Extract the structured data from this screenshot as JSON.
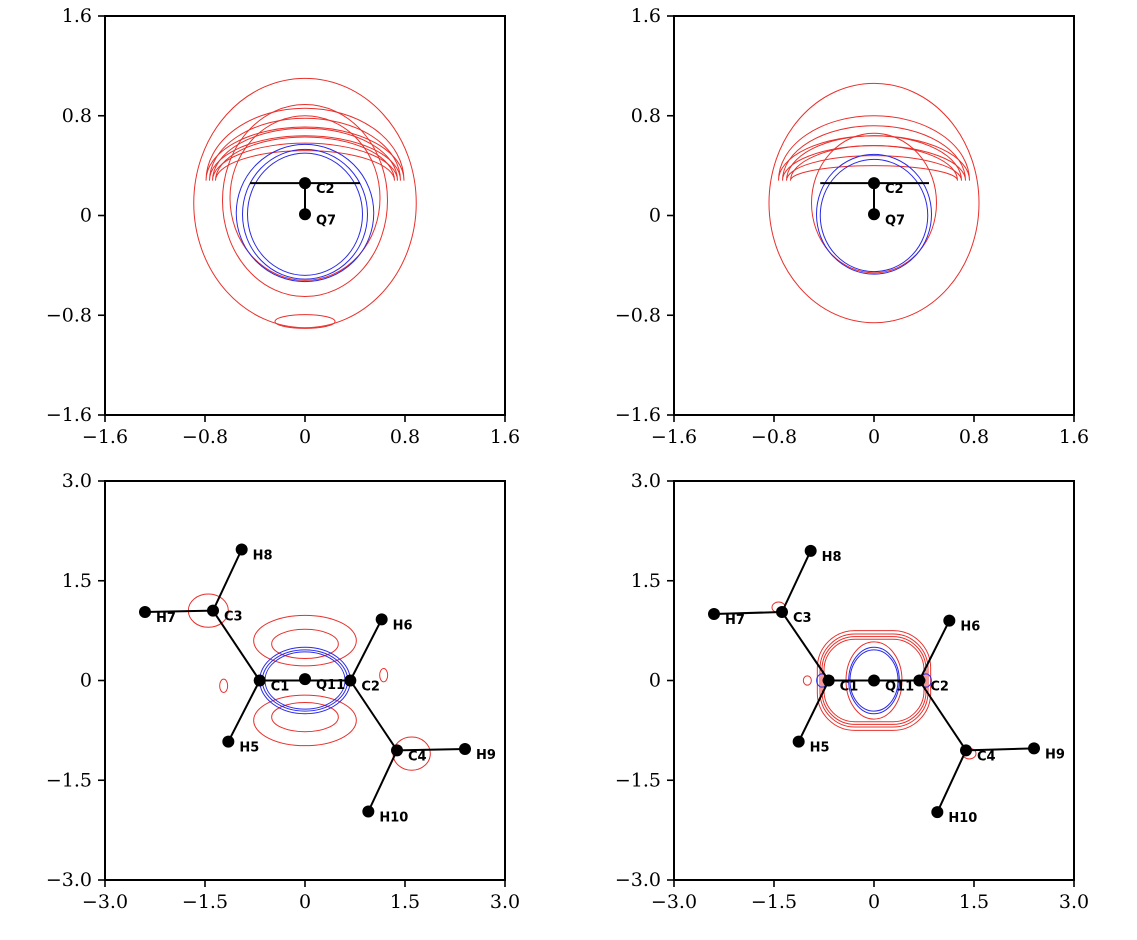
{
  "chart_data": [
    {
      "type": "contour",
      "panel": "top-left",
      "xlim": [
        -1.6,
        1.6
      ],
      "ylim": [
        -1.6,
        1.6
      ],
      "xticks": [
        "−1.6",
        "−0.8",
        "0",
        "0.8",
        "1.6"
      ],
      "yticks": [
        "1.6",
        "0.8",
        "0",
        "−0.8",
        "−1.6"
      ],
      "xtick_values": [
        -1.6,
        -0.8,
        0,
        0.8,
        1.6
      ],
      "ytick_values": [
        1.6,
        0.8,
        0,
        -0.8,
        -1.6
      ],
      "colors": {
        "positive": "#e8302c",
        "negative": "#2a2ae6"
      },
      "atoms": [
        {
          "label": "C2",
          "x": 0,
          "y": 0.26
        },
        {
          "label": "Q7",
          "x": 0,
          "y": 0.01
        }
      ],
      "bonds": [
        [
          [
            -0.44,
            0.26
          ],
          [
            0.44,
            0.26
          ]
        ],
        [
          [
            0,
            0.26
          ],
          [
            0,
            0.01
          ]
        ]
      ],
      "red_ellipses": [
        [
          0,
          0.1,
          0.89,
          1.0
        ],
        [
          0,
          0.12,
          0.66,
          0.77
        ],
        [
          0,
          0.14,
          0.6,
          0.66
        ]
      ],
      "red_arcs": [
        [
          0.24,
          0.35
        ],
        [
          0.3,
          0.42
        ],
        [
          0.36,
          0.5
        ],
        [
          0.43,
          0.58
        ]
      ],
      "red_small": [
        [
          0,
          -0.85,
          0.24,
          0.055
        ]
      ],
      "blue_rings": [
        [
          0,
          0.02,
          0.55,
          0.55
        ],
        [
          0,
          0.01,
          0.5,
          0.52
        ],
        [
          0,
          0.01,
          0.46,
          0.49
        ]
      ]
    },
    {
      "type": "contour",
      "panel": "top-right",
      "xlim": [
        -1.6,
        1.6
      ],
      "ylim": [
        -1.6,
        1.6
      ],
      "xticks": [
        "−1.6",
        "−0.8",
        "0",
        "0.8",
        "1.6"
      ],
      "yticks": [
        "1.6",
        "0.8",
        "0",
        "−0.8",
        "−1.6"
      ],
      "xtick_values": [
        -1.6,
        -0.8,
        0,
        0.8,
        1.6
      ],
      "ytick_values": [
        1.6,
        0.8,
        0,
        -0.8,
        -1.6
      ],
      "colors": {
        "positive": "#e8302c",
        "negative": "#2a2ae6"
      },
      "atoms": [
        {
          "label": "C2",
          "x": 0,
          "y": 0.26
        },
        {
          "label": "Q7",
          "x": 0,
          "y": 0.01
        }
      ],
      "bonds": [
        [
          [
            -0.43,
            0.26
          ],
          [
            0.44,
            0.26
          ]
        ],
        [
          [
            0,
            0.26
          ],
          [
            0,
            0.01
          ]
        ]
      ],
      "red_ellipses": [
        [
          0,
          0.1,
          0.84,
          0.96
        ],
        [
          0,
          0.1,
          0.5,
          0.56
        ]
      ],
      "red_arcs": [
        [
          0.12,
          0.28
        ],
        [
          0.2,
          0.36
        ],
        [
          0.28,
          0.44
        ],
        [
          0.36,
          0.52
        ]
      ],
      "red_small": [],
      "blue_rings": [
        [
          0,
          0.01,
          0.46,
          0.48
        ],
        [
          0,
          0.0,
          0.43,
          0.45
        ]
      ]
    },
    {
      "type": "contour",
      "panel": "bottom-left",
      "xlim": [
        -3.0,
        3.0
      ],
      "ylim": [
        -3.0,
        3.0
      ],
      "xticks": [
        "−3.0",
        "−1.5",
        "0",
        "1.5",
        "3.0"
      ],
      "yticks": [
        "3.0",
        "1.5",
        "0",
        "−1.5",
        "−3.0"
      ],
      "xtick_values": [
        -3.0,
        -1.5,
        0,
        1.5,
        3.0
      ],
      "ytick_values": [
        3.0,
        1.5,
        0,
        -1.5,
        -3.0
      ],
      "colors": {
        "positive": "#e8302c",
        "negative": "#2a2ae6"
      },
      "atoms": [
        {
          "label": "H8",
          "x": -0.95,
          "y": 1.97
        },
        {
          "label": "H7",
          "x": -2.4,
          "y": 1.03
        },
        {
          "label": "C3",
          "x": -1.38,
          "y": 1.05
        },
        {
          "label": "H6",
          "x": 1.15,
          "y": 0.92
        },
        {
          "label": "C1",
          "x": -0.68,
          "y": 0.0
        },
        {
          "label": "Q11",
          "x": 0.0,
          "y": 0.02
        },
        {
          "label": "C2",
          "x": 0.68,
          "y": 0.0
        },
        {
          "label": "H5",
          "x": -1.15,
          "y": -0.92
        },
        {
          "label": "C4",
          "x": 1.38,
          "y": -1.05
        },
        {
          "label": "H9",
          "x": 2.4,
          "y": -1.03
        },
        {
          "label": "H10",
          "x": 0.95,
          "y": -1.97
        }
      ],
      "bonds": [
        [
          0,
          2
        ],
        [
          1,
          2
        ],
        [
          2,
          4
        ],
        [
          4,
          7
        ],
        [
          4,
          6
        ],
        [
          6,
          3
        ],
        [
          6,
          8
        ],
        [
          8,
          9
        ],
        [
          8,
          10
        ]
      ],
      "blue_ellipses": [
        [
          0,
          0,
          0.68,
          0.5
        ],
        [
          0,
          0,
          0.64,
          0.46
        ],
        [
          0,
          0,
          0.6,
          0.43
        ]
      ],
      "red_lobes": [
        [
          0,
          0.6,
          0.77,
          0.38
        ],
        [
          0,
          0.55,
          0.5,
          0.22
        ],
        [
          0,
          -0.6,
          0.77,
          0.38
        ],
        [
          0,
          -0.55,
          0.5,
          0.22
        ]
      ],
      "red_small": [
        [
          -1.45,
          1.05,
          0.3,
          0.25
        ],
        [
          1.6,
          -1.1,
          0.28,
          0.25
        ],
        [
          -1.22,
          -0.08,
          0.06,
          0.1
        ],
        [
          1.18,
          0.08,
          0.06,
          0.1
        ]
      ]
    },
    {
      "type": "contour",
      "panel": "bottom-right",
      "xlim": [
        -3.0,
        3.0
      ],
      "ylim": [
        -3.0,
        3.0
      ],
      "xticks": [
        "−3.0",
        "−1.5",
        "0",
        "1.5",
        "3.0"
      ],
      "yticks": [
        "3.0",
        "1.5",
        "0",
        "−1.5",
        "−3.0"
      ],
      "xtick_values": [
        -3.0,
        -1.5,
        0,
        1.5,
        3.0
      ],
      "ytick_values": [
        3.0,
        1.5,
        0,
        -1.5,
        -3.0
      ],
      "colors": {
        "positive": "#e8302c",
        "negative": "#2a2ae6"
      },
      "atoms": [
        {
          "label": "H8",
          "x": -0.95,
          "y": 1.95
        },
        {
          "label": "H7",
          "x": -2.4,
          "y": 1.0
        },
        {
          "label": "C3",
          "x": -1.38,
          "y": 1.03
        },
        {
          "label": "H6",
          "x": 1.13,
          "y": 0.9
        },
        {
          "label": "C1",
          "x": -0.68,
          "y": 0.0
        },
        {
          "label": "Q11",
          "x": 0.0,
          "y": 0.0
        },
        {
          "label": "C2",
          "x": 0.68,
          "y": 0.0
        },
        {
          "label": "H5",
          "x": -1.13,
          "y": -0.92
        },
        {
          "label": "C4",
          "x": 1.38,
          "y": -1.05
        },
        {
          "label": "H9",
          "x": 2.4,
          "y": -1.02
        },
        {
          "label": "H10",
          "x": 0.95,
          "y": -1.98
        }
      ],
      "bonds": [
        [
          0,
          2
        ],
        [
          1,
          2
        ],
        [
          2,
          4
        ],
        [
          4,
          7
        ],
        [
          4,
          6
        ],
        [
          6,
          3
        ],
        [
          6,
          8
        ],
        [
          8,
          9
        ],
        [
          8,
          10
        ]
      ],
      "red_rects": [
        [
          0,
          0,
          0.85,
          0.75
        ],
        [
          0,
          0,
          0.81,
          0.7
        ],
        [
          0,
          0,
          0.78,
          0.66
        ],
        [
          0,
          0,
          0.75,
          0.62
        ]
      ],
      "red_ellipses": [
        [
          0,
          0,
          0.42,
          0.58
        ]
      ],
      "blue_ellipses": [
        [
          0,
          0,
          0.38,
          0.5
        ],
        [
          0,
          0,
          0.36,
          0.46
        ]
      ],
      "blue_small": [
        [
          -0.78,
          0.0,
          0.08,
          0.1
        ],
        [
          0.78,
          0.0,
          0.08,
          0.1
        ]
      ],
      "red_small": [
        [
          -1.43,
          1.1,
          0.1,
          0.08
        ],
        [
          1.43,
          -1.1,
          0.1,
          0.08
        ],
        [
          -1.0,
          0.0,
          0.06,
          0.07
        ]
      ]
    }
  ]
}
